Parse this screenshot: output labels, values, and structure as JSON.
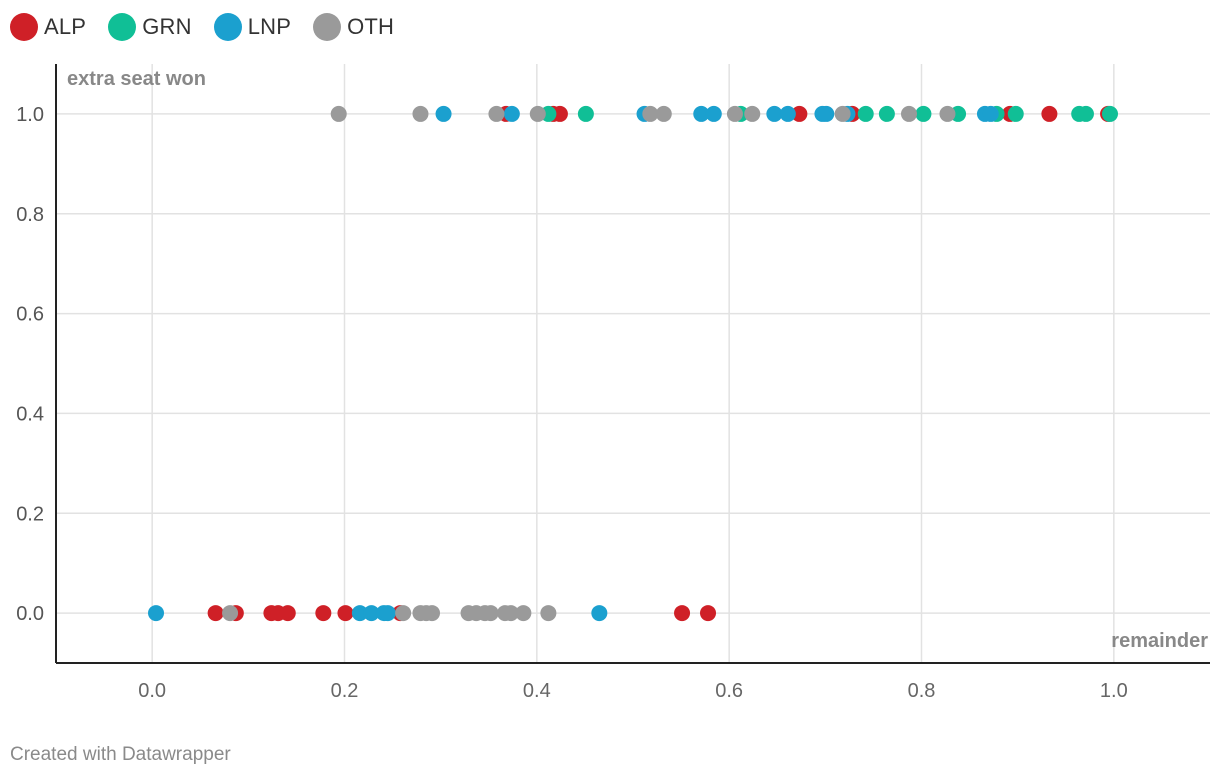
{
  "legend": [
    {
      "name": "ALP",
      "color": "#cf2027"
    },
    {
      "name": "GRN",
      "color": "#10bf96"
    },
    {
      "name": "LNP",
      "color": "#1ba0cf"
    },
    {
      "name": "OTH",
      "color": "#9a9a9a"
    }
  ],
  "footer": "Created with Datawrapper",
  "chart_data": {
    "type": "scatter",
    "title": "",
    "xlabel": "remainder",
    "ylabel": "extra seat won",
    "xlim": [
      -0.1,
      1.1
    ],
    "ylim": [
      -0.1,
      1.1
    ],
    "x_ticks": [
      "0.0",
      "0.2",
      "0.4",
      "0.6",
      "0.8",
      "1.0"
    ],
    "y_ticks": [
      "0.0",
      "0.2",
      "0.4",
      "0.6",
      "0.8",
      "1.0"
    ],
    "grid": true,
    "legend_position": "top-left",
    "series": [
      {
        "name": "ALP",
        "color": "#cf2027",
        "points": [
          [
            0.066,
            0
          ],
          [
            0.087,
            0
          ],
          [
            0.124,
            0
          ],
          [
            0.131,
            0
          ],
          [
            0.141,
            0
          ],
          [
            0.178,
            0
          ],
          [
            0.201,
            0
          ],
          [
            0.258,
            0
          ],
          [
            0.551,
            0
          ],
          [
            0.578,
            0
          ],
          [
            0.368,
            1
          ],
          [
            0.417,
            1
          ],
          [
            0.424,
            1
          ],
          [
            0.673,
            1
          ],
          [
            0.728,
            1
          ],
          [
            0.892,
            1
          ],
          [
            0.933,
            1
          ],
          [
            0.994,
            1
          ]
        ]
      },
      {
        "name": "GRN",
        "color": "#10bf96",
        "points": [
          [
            0.412,
            1
          ],
          [
            0.451,
            1
          ],
          [
            0.612,
            1
          ],
          [
            0.742,
            1
          ],
          [
            0.764,
            1
          ],
          [
            0.802,
            1
          ],
          [
            0.838,
            1
          ],
          [
            0.878,
            1
          ],
          [
            0.898,
            1
          ],
          [
            0.964,
            1
          ],
          [
            0.971,
            1
          ],
          [
            0.996,
            1
          ]
        ]
      },
      {
        "name": "LNP",
        "color": "#1ba0cf",
        "points": [
          [
            0.004,
            0
          ],
          [
            0.216,
            0
          ],
          [
            0.228,
            0
          ],
          [
            0.241,
            0
          ],
          [
            0.245,
            0
          ],
          [
            0.465,
            0
          ],
          [
            0.303,
            1
          ],
          [
            0.374,
            1
          ],
          [
            0.512,
            1
          ],
          [
            0.571,
            1
          ],
          [
            0.584,
            1
          ],
          [
            0.647,
            1
          ],
          [
            0.661,
            1
          ],
          [
            0.697,
            1
          ],
          [
            0.701,
            1
          ],
          [
            0.723,
            1
          ],
          [
            0.866,
            1
          ],
          [
            0.872,
            1
          ]
        ]
      },
      {
        "name": "OTH",
        "color": "#9a9a9a",
        "points": [
          [
            0.081,
            0
          ],
          [
            0.261,
            0
          ],
          [
            0.279,
            0
          ],
          [
            0.285,
            0
          ],
          [
            0.291,
            0
          ],
          [
            0.329,
            0
          ],
          [
            0.337,
            0
          ],
          [
            0.346,
            0
          ],
          [
            0.352,
            0
          ],
          [
            0.367,
            0
          ],
          [
            0.373,
            0
          ],
          [
            0.386,
            0
          ],
          [
            0.412,
            0
          ],
          [
            0.194,
            1
          ],
          [
            0.279,
            1
          ],
          [
            0.358,
            1
          ],
          [
            0.401,
            1
          ],
          [
            0.518,
            1
          ],
          [
            0.532,
            1
          ],
          [
            0.606,
            1
          ],
          [
            0.624,
            1
          ],
          [
            0.718,
            1
          ],
          [
            0.787,
            1
          ],
          [
            0.827,
            1
          ]
        ]
      }
    ]
  }
}
